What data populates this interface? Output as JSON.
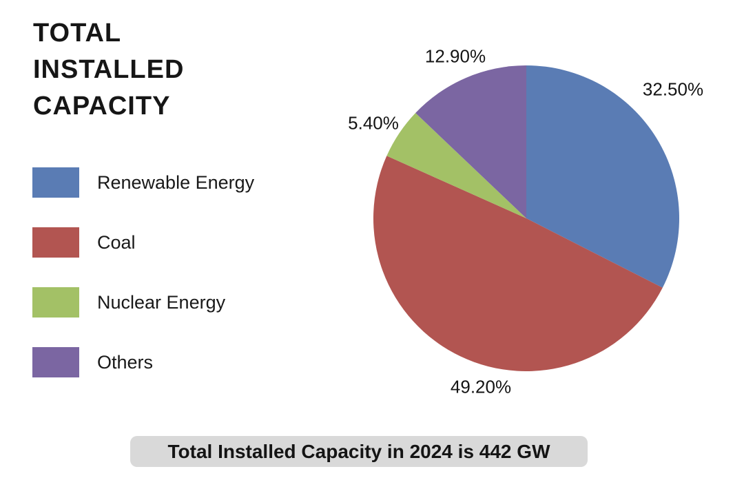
{
  "header": {
    "title_lines": [
      "TOTAL",
      "INSTALLED",
      "CAPACITY"
    ]
  },
  "chart_data": {
    "type": "pie",
    "title": "TOTAL INSTALLED CAPACITY",
    "start_angle_deg": 0,
    "direction": "clockwise",
    "legend_position": "left",
    "slices": [
      {
        "label": "Renewable Energy",
        "value": 32.5,
        "display": "32.50%",
        "color": "#5a7cb4"
      },
      {
        "label": "Coal",
        "value": 49.2,
        "display": "49.20%",
        "color": "#b25551"
      },
      {
        "label": "Nuclear Energy",
        "value": 5.4,
        "display": "5.40%",
        "color": "#a3c166"
      },
      {
        "label": "Others",
        "value": 12.9,
        "display": "12.90%",
        "color": "#7b66a2"
      }
    ],
    "annotation": "Total Installed Capacity in 2024 is 442 GW"
  },
  "colors": {
    "background": "#ffffff",
    "caption_background": "#d9d9d9",
    "text": "#141414"
  }
}
